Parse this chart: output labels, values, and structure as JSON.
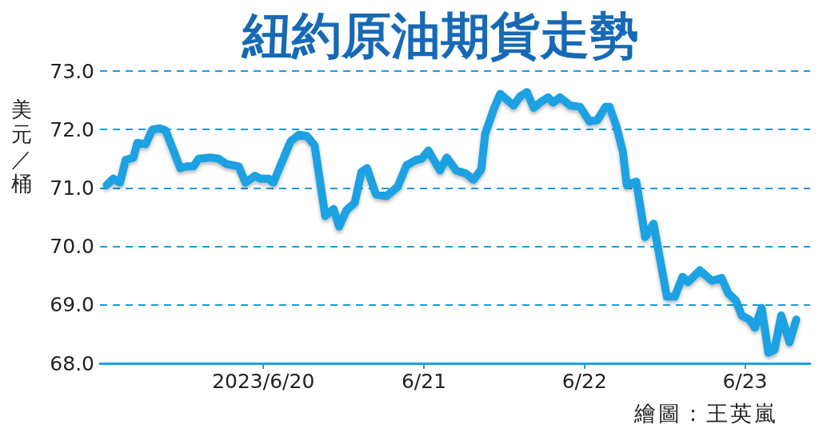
{
  "chart_data": {
    "type": "line",
    "title": "紐約原油期貨走勢",
    "ylabel": "美元／桶",
    "annotations": [
      "繪圖：王英嵐"
    ],
    "x": [
      "2023-06-19T00:35",
      "2023-06-19T01:35",
      "2023-06-19T02:35",
      "2023-06-19T03:25",
      "2023-06-19T04:35",
      "2023-06-19T05:10",
      "2023-06-19T06:25",
      "2023-06-19T07:25",
      "2023-06-19T08:35",
      "2023-06-19T09:25",
      "2023-06-19T11:35",
      "2023-06-19T12:35",
      "2023-06-19T13:35",
      "2023-06-19T14:20",
      "2023-06-19T16:10",
      "2023-06-19T17:20",
      "2023-06-19T18:30",
      "2023-06-19T20:20",
      "2023-06-19T21:20",
      "2023-06-19T22:45",
      "2023-06-19T23:30",
      "2023-06-20T00:45",
      "2023-06-20T01:30",
      "2023-06-20T02:55",
      "2023-06-20T04:05",
      "2023-06-20T05:20",
      "2023-06-20T06:30",
      "2023-06-20T07:40",
      "2023-06-20T09:15",
      "2023-06-20T10:30",
      "2023-06-20T11:20",
      "2023-06-20T12:25",
      "2023-06-20T13:40",
      "2023-06-20T14:40",
      "2023-06-20T15:30",
      "2023-06-20T16:50",
      "2023-06-20T18:25",
      "2023-06-20T20:05",
      "2023-06-20T21:25",
      "2023-06-20T22:50",
      "2023-06-20T23:40",
      "2023-06-21T00:40",
      "2023-06-21T02:25",
      "2023-06-21T03:25",
      "2023-06-21T04:50",
      "2023-06-21T06:15",
      "2023-06-21T07:25",
      "2023-06-21T08:35",
      "2023-06-21T09:10",
      "2023-06-21T10:25",
      "2023-06-21T11:25",
      "2023-06-21T13:25",
      "2023-06-21T14:25",
      "2023-06-21T15:25",
      "2023-06-21T16:25",
      "2023-06-21T17:35",
      "2023-06-21T18:35",
      "2023-06-21T19:20",
      "2023-06-21T20:20",
      "2023-06-21T21:55",
      "2023-06-21T23:20",
      "2023-06-22T00:45",
      "2023-06-22T01:55",
      "2023-06-22T03:10",
      "2023-06-22T03:45",
      "2023-06-22T04:45",
      "2023-06-22T05:45",
      "2023-06-22T06:20",
      "2023-06-22T07:45",
      "2023-06-22T09:05",
      "2023-06-22T10:20",
      "2023-06-22T12:20",
      "2023-06-22T13:30",
      "2023-06-22T14:40",
      "2023-06-22T15:30",
      "2023-06-22T17:15",
      "2023-06-22T19:05",
      "2023-06-22T20:30",
      "2023-06-22T21:30",
      "2023-06-22T22:40",
      "2023-06-22T23:30",
      "2023-06-23T00:40",
      "2023-06-23T01:30",
      "2023-06-23T02:30",
      "2023-06-23T03:30",
      "2023-06-23T04:25",
      "2023-06-23T05:25",
      "2023-06-23T06:40",
      "2023-06-23T07:40"
    ],
    "values": [
      71.05,
      71.16,
      71.09,
      71.48,
      71.52,
      71.77,
      71.75,
      72.0,
      72.02,
      71.98,
      71.34,
      71.37,
      71.37,
      71.5,
      71.52,
      71.5,
      71.41,
      71.37,
      71.09,
      71.21,
      71.16,
      71.16,
      71.09,
      71.48,
      71.8,
      71.91,
      71.89,
      71.73,
      70.52,
      70.64,
      70.34,
      70.62,
      70.75,
      71.27,
      71.34,
      70.89,
      70.86,
      71.02,
      71.39,
      71.48,
      71.5,
      71.64,
      71.3,
      71.52,
      71.3,
      71.25,
      71.14,
      71.32,
      71.93,
      72.34,
      72.61,
      72.41,
      72.57,
      72.64,
      72.37,
      72.48,
      72.55,
      72.46,
      72.55,
      72.41,
      72.39,
      72.14,
      72.16,
      72.39,
      72.39,
      72.07,
      71.62,
      71.05,
      71.11,
      70.16,
      70.39,
      69.14,
      69.14,
      69.48,
      69.39,
      69.59,
      69.41,
      69.46,
      69.2,
      69.07,
      68.82,
      68.75,
      68.61,
      68.95,
      68.18,
      68.23,
      68.82,
      68.36,
      68.75
    ],
    "color": "#1ba1e2",
    "xlim": [
      "2023-06-18T23:35",
      "2023-06-23T09:45"
    ],
    "xticks": [
      {
        "value": "2023-06-20",
        "label": "2023/6/20"
      },
      {
        "value": "2023-06-21",
        "label": "6/21"
      },
      {
        "value": "2023-06-22",
        "label": "6/22"
      },
      {
        "value": "2023-06-23",
        "label": "6/23"
      }
    ],
    "ylim": [
      68,
      73
    ],
    "yticks": [
      {
        "value": 68,
        "label": "68.0"
      },
      {
        "value": 69,
        "label": "69.0"
      },
      {
        "value": 70,
        "label": "70.0"
      },
      {
        "value": 71,
        "label": "71.0"
      },
      {
        "value": 72,
        "label": "72.0"
      },
      {
        "value": 73,
        "label": "73.0"
      }
    ],
    "grid": "y",
    "marker": "none",
    "line_style": "solid"
  }
}
